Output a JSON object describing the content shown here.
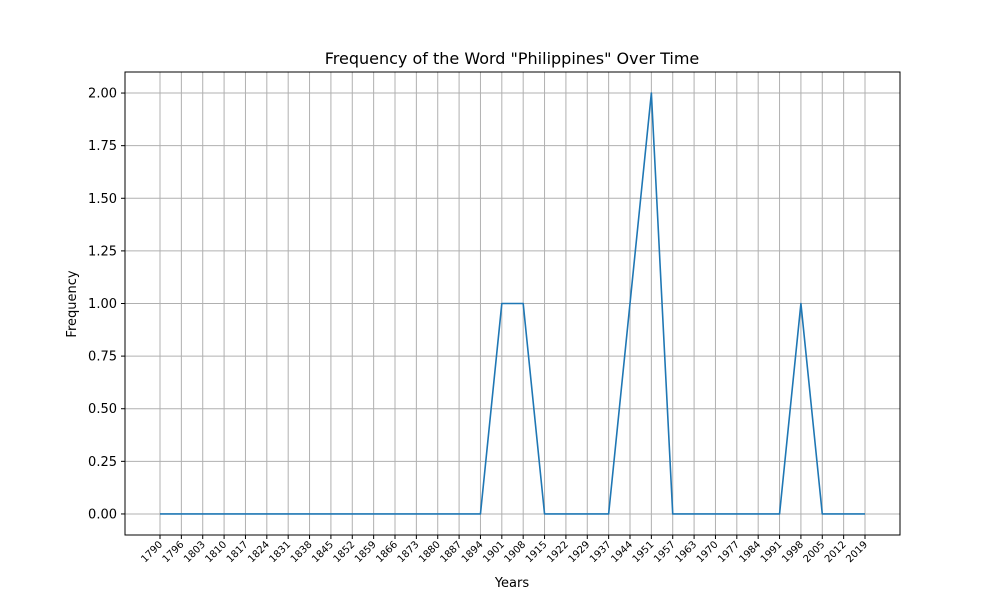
{
  "chart_data": {
    "type": "line",
    "title": "Frequency of the Word \"Philippines\" Over Time",
    "xlabel": "Years",
    "ylabel": "Frequency",
    "ylim": [
      -0.1,
      2.1
    ],
    "yticks": [
      0.0,
      0.25,
      0.5,
      0.75,
      1.0,
      1.25,
      1.5,
      1.75,
      2.0
    ],
    "ytick_labels": [
      "0.00",
      "0.25",
      "0.50",
      "0.75",
      "1.00",
      "1.25",
      "1.50",
      "1.75",
      "2.00"
    ],
    "x": [
      "1790",
      "1796",
      "1803",
      "1810",
      "1817",
      "1824",
      "1831",
      "1838",
      "1845",
      "1852",
      "1859",
      "1866",
      "1873",
      "1880",
      "1887",
      "1894",
      "1901",
      "1908",
      "1915",
      "1922",
      "1929",
      "1937",
      "1944",
      "1951",
      "1957",
      "1963",
      "1970",
      "1977",
      "1984",
      "1991",
      "1998",
      "2005",
      "2012",
      "2019"
    ],
    "series": [
      {
        "color": "#1f77b4",
        "values": [
          0,
          0,
          0,
          0,
          0,
          0,
          0,
          0,
          0,
          0,
          0,
          0,
          0,
          0,
          0,
          0,
          1,
          1,
          0,
          0,
          0,
          0,
          1,
          2,
          0,
          0,
          0,
          0,
          0,
          0,
          1,
          0,
          0,
          0
        ]
      }
    ],
    "grid": true,
    "xtick_rotation": "45-degrees"
  }
}
